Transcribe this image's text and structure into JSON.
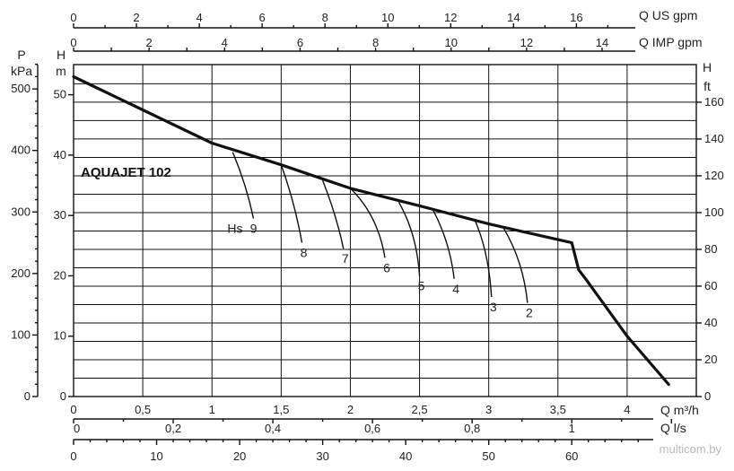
{
  "chart_data": {
    "type": "line",
    "title": "AQUAJET 102",
    "xlabel": "Q m³/h",
    "ylabel": "H m",
    "xlim": [
      0,
      4.5
    ],
    "ylim": [
      0,
      55
    ],
    "grid": true,
    "axes": {
      "left_outer": {
        "label_line1": "P",
        "label_line2": "kPa",
        "ticks": [
          "0",
          "100",
          "200",
          "300",
          "400",
          "500"
        ]
      },
      "left_inner": {
        "label_line1": "H",
        "label_line2": "m",
        "ticks": [
          "0",
          "10",
          "20",
          "30",
          "40",
          "50"
        ]
      },
      "right": {
        "label_line1": "H",
        "label_line2": "ft",
        "ticks": [
          "0",
          "20",
          "40",
          "60",
          "80",
          "100",
          "120",
          "140",
          "160"
        ]
      },
      "top_us": {
        "label": "Q US gpm",
        "ticks": [
          "0",
          "2",
          "4",
          "6",
          "8",
          "10",
          "12",
          "14",
          "16"
        ]
      },
      "top_imp": {
        "label": "Q IMP gpm",
        "ticks": [
          "0",
          "2",
          "4",
          "6",
          "8",
          "10",
          "12",
          "14"
        ]
      },
      "bottom_m3h": {
        "label": "Q m³/h",
        "ticks": [
          "0",
          "0,5",
          "1",
          "1,5",
          "2",
          "2,5",
          "3",
          "3,5",
          "4"
        ]
      },
      "bottom_ls": {
        "label": "Q l/s",
        "ticks": [
          "0",
          "0,2",
          "0,4",
          "0,6",
          "0,8",
          "1"
        ]
      },
      "bottom_lmin": {
        "ticks": [
          "0",
          "10",
          "20",
          "30",
          "40",
          "50",
          "60"
        ]
      }
    },
    "series": [
      {
        "x": [
          0,
          0.5,
          1.0,
          1.5,
          2.0,
          2.5,
          3.0,
          3.5,
          3.6,
          3.65,
          3.7,
          4.0,
          4.3
        ],
        "y": [
          53,
          47.5,
          42,
          38.4,
          34.5,
          31.6,
          28.6,
          26,
          25.5,
          21,
          19.5,
          10,
          2
        ]
      }
    ],
    "hs_curves": [
      {
        "label": "9",
        "x": [
          1.15,
          1.25,
          1.3
        ],
        "y": [
          40.5,
          35,
          29.5
        ]
      },
      {
        "label": "8",
        "x": [
          1.5,
          1.6,
          1.65
        ],
        "y": [
          38.4,
          32,
          25.5
        ]
      },
      {
        "label": "7",
        "x": [
          1.8,
          1.9,
          1.95
        ],
        "y": [
          35.8,
          30,
          24.5
        ]
      },
      {
        "label": "6",
        "x": [
          2.0,
          2.2,
          2.25
        ],
        "y": [
          34.5,
          30,
          23
        ]
      },
      {
        "label": "5",
        "x": [
          2.35,
          2.48,
          2.5
        ],
        "y": [
          32.2,
          27,
          20
        ]
      },
      {
        "label": "4",
        "x": [
          2.6,
          2.72,
          2.75
        ],
        "y": [
          30.8,
          25.5,
          19.5
        ]
      },
      {
        "label": "3",
        "x": [
          2.9,
          3.0,
          3.02
        ],
        "y": [
          29.2,
          24,
          16.5
        ]
      },
      {
        "label": "2",
        "x": [
          3.1,
          3.25,
          3.28
        ],
        "y": [
          28.2,
          22.5,
          15.5
        ]
      }
    ],
    "hs_prefix": "Hs",
    "watermark": "multicom.by"
  }
}
